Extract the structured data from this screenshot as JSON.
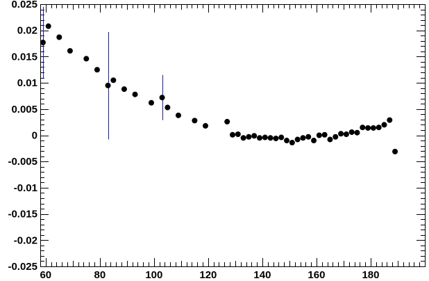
{
  "chart_data": {
    "type": "scatter",
    "title": "",
    "xlabel": "",
    "ylabel": "",
    "xlim": [
      58,
      200
    ],
    "ylim": [
      -0.025,
      0.025
    ],
    "grid": false,
    "x_ticks": [
      60,
      80,
      100,
      120,
      140,
      160,
      180
    ],
    "x_tick_labels": [
      "60",
      "80",
      "100",
      "120",
      "140",
      "160",
      "180"
    ],
    "y_ticks": [
      0.025,
      0.02,
      0.015,
      0.01,
      0.005,
      0,
      -0.005,
      -0.01,
      -0.015,
      -0.02,
      -0.025
    ],
    "y_tick_labels": [
      "0.025",
      "0.02",
      "0.015",
      "0.01",
      "0.005",
      "0",
      "-0.005",
      "-0.01",
      "-0.015",
      "-0.02",
      "-0.025"
    ],
    "series": [
      {
        "marker_color": "#000000",
        "error_color": "#1a1aa6",
        "points": [
          {
            "x": 59,
            "y": 0.0177,
            "err_low": 0.0108,
            "err_high": 0.0245
          },
          {
            "x": 61,
            "y": 0.0208
          },
          {
            "x": 65,
            "y": 0.0187
          },
          {
            "x": 69,
            "y": 0.0161
          },
          {
            "x": 75,
            "y": 0.0146
          },
          {
            "x": 79,
            "y": 0.0125
          },
          {
            "x": 83,
            "y": 0.0095,
            "err_low": -0.0008,
            "err_high": 0.0197
          },
          {
            "x": 85,
            "y": 0.0105
          },
          {
            "x": 89,
            "y": 0.0088
          },
          {
            "x": 93,
            "y": 0.0078
          },
          {
            "x": 99,
            "y": 0.0062
          },
          {
            "x": 103,
            "y": 0.0072,
            "err_low": 0.0029,
            "err_high": 0.0115
          },
          {
            "x": 105,
            "y": 0.0053
          },
          {
            "x": 109,
            "y": 0.0038
          },
          {
            "x": 115,
            "y": 0.0028
          },
          {
            "x": 119,
            "y": 0.0018
          },
          {
            "x": 127,
            "y": 0.0026
          },
          {
            "x": 129,
            "y": 0.0001
          },
          {
            "x": 131,
            "y": 0.0002
          },
          {
            "x": 133,
            "y": -0.0005
          },
          {
            "x": 135,
            "y": -0.0003
          },
          {
            "x": 137,
            "y": -0.0001
          },
          {
            "x": 139,
            "y": -0.0005
          },
          {
            "x": 141,
            "y": -0.0004
          },
          {
            "x": 143,
            "y": -0.0005
          },
          {
            "x": 145,
            "y": -0.0006
          },
          {
            "x": 147,
            "y": -0.0004
          },
          {
            "x": 149,
            "y": -0.001
          },
          {
            "x": 151,
            "y": -0.0014
          },
          {
            "x": 153,
            "y": -0.0008
          },
          {
            "x": 155,
            "y": -0.0005
          },
          {
            "x": 157,
            "y": -0.0003
          },
          {
            "x": 159,
            "y": -0.001
          },
          {
            "x": 161,
            "y": 0.0
          },
          {
            "x": 163,
            "y": 0.0001
          },
          {
            "x": 165,
            "y": -0.0008
          },
          {
            "x": 167,
            "y": -0.0003
          },
          {
            "x": 169,
            "y": 0.0003
          },
          {
            "x": 171,
            "y": 0.0002
          },
          {
            "x": 173,
            "y": 0.0006
          },
          {
            "x": 175,
            "y": 0.0005
          },
          {
            "x": 177,
            "y": 0.0015
          },
          {
            "x": 179,
            "y": 0.0014
          },
          {
            "x": 181,
            "y": 0.0014
          },
          {
            "x": 183,
            "y": 0.0015
          },
          {
            "x": 185,
            "y": 0.002
          },
          {
            "x": 187,
            "y": 0.0029
          },
          {
            "x": 189,
            "y": -0.0031
          }
        ]
      }
    ]
  }
}
